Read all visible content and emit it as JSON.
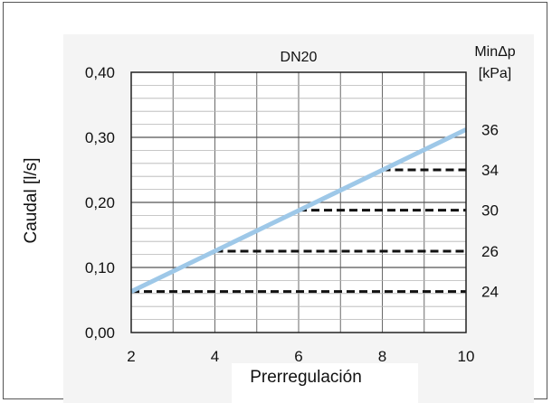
{
  "chart_data": {
    "type": "line",
    "title": "DN20",
    "xlabel": "Prerregulación",
    "ylabel": "Caudal [l/s]",
    "right_axis_title": [
      "MinΔp",
      "[kPa]"
    ],
    "xlim": [
      2,
      10
    ],
    "ylim": [
      0,
      0.4
    ],
    "x_ticks": [
      2,
      4,
      6,
      8,
      10
    ],
    "x_tick_labels": [
      "2",
      "4",
      "6",
      "8",
      "10"
    ],
    "y_ticks": [
      0,
      0.1,
      0.2,
      0.3,
      0.4
    ],
    "y_tick_labels": [
      "0,00",
      "0,10",
      "0,20",
      "0,30",
      "0,40"
    ],
    "grid": true,
    "series": [
      {
        "x": [
          2,
          10
        ],
        "values": [
          0.063,
          0.312
        ],
        "color": "#9ec8e8",
        "style": "solid"
      }
    ],
    "min_dp_lines": [
      {
        "x_start": 2,
        "x_end": 10,
        "y": 0.063,
        "label": "24"
      },
      {
        "x_start": 4,
        "x_end": 10,
        "y": 0.125,
        "label": "26"
      },
      {
        "x_start": 6,
        "x_end": 10,
        "y": 0.188,
        "label": "30"
      },
      {
        "x_start": 8,
        "x_end": 10,
        "y": 0.25,
        "label": "34"
      },
      {
        "x_start": 10,
        "x_end": 10,
        "y": 0.312,
        "label": "36"
      }
    ]
  }
}
